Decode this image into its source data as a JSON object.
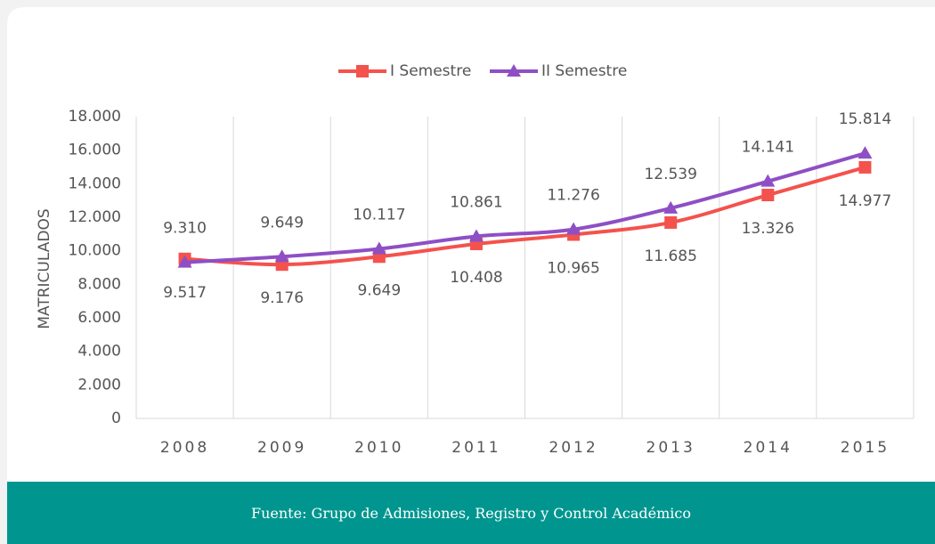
{
  "chart_data": {
    "type": "line",
    "categories": [
      "2008",
      "2009",
      "2010",
      "2011",
      "2012",
      "2013",
      "2014",
      "2015"
    ],
    "y_label": "MATRICULADOS",
    "series": [
      {
        "name": "I Semestre",
        "color": "#f4524d",
        "marker": "square",
        "values": [
          9517,
          9176,
          9649,
          10408,
          10965,
          11685,
          13326,
          14977
        ],
        "value_labels": [
          "9.517",
          "9.176",
          "9.649",
          "10.408",
          "10.965",
          "11.685",
          "13.326",
          "14.977"
        ]
      },
      {
        "name": "II Semestre",
        "color": "#8e4fc5",
        "marker": "triangle",
        "values": [
          9310,
          9649,
          10117,
          10861,
          11276,
          12539,
          14141,
          15814
        ],
        "value_labels": [
          "9.310",
          "9.649",
          "10.117",
          "10.861",
          "11.276",
          "12.539",
          "14.141",
          "15.814"
        ]
      }
    ],
    "ylim": [
      0,
      18000
    ],
    "yticks": [
      0,
      {
        "value": 2000,
        "label": "2.000"
      },
      {
        "value": 4000,
        "label": "4.000"
      },
      {
        "value": 6000,
        "label": "6.000"
      },
      {
        "value": 8000,
        "label": "8.000"
      },
      {
        "value": 10000,
        "label": "10.000"
      },
      {
        "value": 12000,
        "label": "12.000"
      },
      {
        "value": 14000,
        "label": "14.000"
      },
      {
        "value": 16000,
        "label": "16.000"
      },
      {
        "value": 18000,
        "label": "18.000"
      }
    ],
    "legend": "top",
    "grid": "vertical"
  },
  "footer": {
    "text": "Fuente: Grupo de Admisiones, Registro y Control Académico"
  }
}
